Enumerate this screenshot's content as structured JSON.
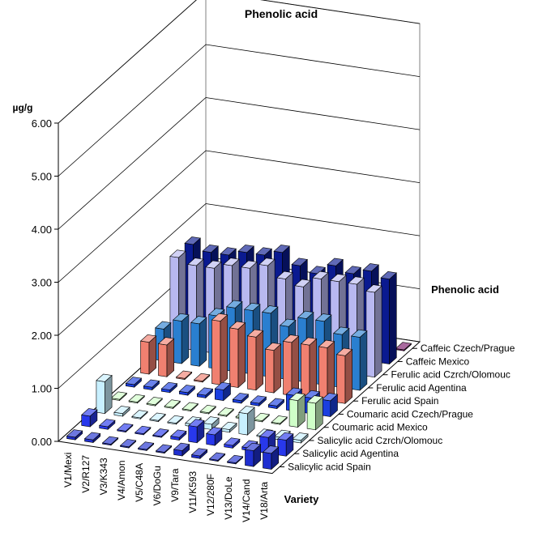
{
  "chart_data": {
    "type": "bar",
    "subtype": "3d-column",
    "title": "Phenolic acid",
    "ylabel": "µg/g",
    "xlabel": "Variety",
    "zlabel": "Phenolic acid",
    "ylim": [
      0,
      6
    ],
    "yticks": [
      "0.00",
      "1.00",
      "2.00",
      "3.00",
      "4.00",
      "5.00",
      "6.00"
    ],
    "grid": true,
    "categories": [
      "V1/Mexi",
      "V2/R127",
      "V3/K343",
      "V4/Amon",
      "V5/C48A",
      "V6/DoGu",
      "V9/Tara",
      "V11/K593",
      "V12/280F",
      "V13/DoLe",
      "V14/Cand",
      "V18/Arta"
    ],
    "series": [
      {
        "name": "Salicylic acid Spain",
        "color": "#1f2fd0",
        "values": [
          0.05,
          0.05,
          0.02,
          0.02,
          0.02,
          0.02,
          0.1,
          0.05,
          0.02,
          0.02,
          0.3,
          0.3
        ]
      },
      {
        "name": "Salicylic acid Agentina",
        "color": "#2838ec",
        "values": [
          0.2,
          0.05,
          0.02,
          0.02,
          0.02,
          0.05,
          0.3,
          0.2,
          0.05,
          0.05,
          0.3,
          0.3
        ]
      },
      {
        "name": "Salicylic acid Czrch/Olomouc",
        "color": "#c8f0ff",
        "values": [
          0.6,
          0.05,
          0.02,
          0.02,
          0.02,
          0.05,
          0.1,
          0.05,
          0.4,
          0.02,
          0.05,
          0.05
        ]
      },
      {
        "name": "Coumaric acid Mexico",
        "color": "#cfffc8",
        "values": [
          0.02,
          0.02,
          0.02,
          0.02,
          0.02,
          0.02,
          0.02,
          0.02,
          0.02,
          0.02,
          0.5,
          0.5
        ]
      },
      {
        "name": "Coumaric acid Czech/Prague",
        "color": "#1a3fe0",
        "values": [
          0.05,
          0.05,
          0.05,
          0.05,
          0.05,
          0.2,
          0.05,
          0.05,
          0.05,
          0.3,
          0.3,
          0.3
        ]
      },
      {
        "name": "Ferulic acid Spain",
        "color": "#f08070",
        "values": [
          0.6,
          0.6,
          0.02,
          0.02,
          1.2,
          1.1,
          1.0,
          0.8,
          1.0,
          1.0,
          1.0,
          0.9
        ]
      },
      {
        "name": "Ferulic acid Agentina",
        "color": "#2a7fd0",
        "values": [
          0.6,
          0.8,
          0.8,
          1.0,
          1.2,
          1.2,
          1.2,
          1.0,
          1.2,
          1.2,
          1.0,
          1.0
        ]
      },
      {
        "name": "Ferulic acid Czrch/Olomouc",
        "color": "#b8b8f0",
        "values": [
          1.7,
          1.6,
          1.6,
          1.7,
          1.7,
          1.8,
          1.6,
          1.5,
          1.7,
          1.7,
          1.7,
          1.6
        ]
      },
      {
        "name": "Caffeic Mexico",
        "color": "#0a1a90",
        "values": [
          1.7,
          1.6,
          1.6,
          1.7,
          1.7,
          1.8,
          1.6,
          1.5,
          1.7,
          1.6,
          1.7,
          1.6
        ]
      },
      {
        "name": "Caffeic Czech/Prague",
        "color": "#7a1a6a",
        "values": [
          0.02,
          0.02,
          0.02,
          0.02,
          0.02,
          0.02,
          0.02,
          0.02,
          0.02,
          0.02,
          0.02,
          0.02
        ]
      }
    ]
  }
}
